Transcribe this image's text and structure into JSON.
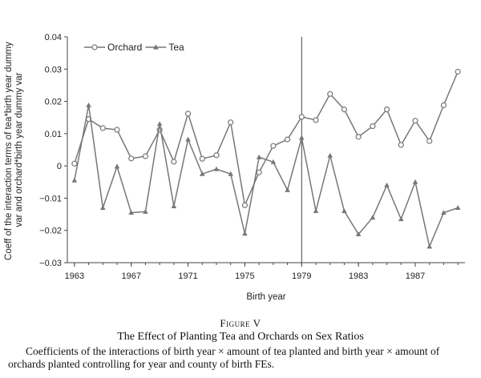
{
  "figure": {
    "label": "Figure V",
    "title": "The Effect of Planting Tea and Orchards on Sex Ratios",
    "note": "Coefficients of the interactions of birth year × amount of tea planted and birth year × amount of orchards planted controlling for year and county of birth FEs."
  },
  "chart_data": {
    "type": "line",
    "xlabel": "Birth year",
    "ylabel": "Coeff of the interaction terms of tea*birth year dummy var and orchard*birth year dummy var",
    "ylim": [
      -0.03,
      0.04
    ],
    "yticks": [
      -0.03,
      -0.02,
      -0.01,
      0,
      0.01,
      0.02,
      0.03,
      0.04
    ],
    "ytick_labels": [
      "−0.03",
      "−0.02",
      "−0.01",
      "0",
      "0.01",
      "0.02",
      "0.03",
      "0.04"
    ],
    "xlim": [
      1962.5,
      1990.5
    ],
    "xticks": [
      1963,
      1967,
      1971,
      1975,
      1979,
      1983,
      1987
    ],
    "xtick_labels": [
      "1963",
      "1967",
      "1971",
      "1975",
      "1979",
      "1983",
      "1987"
    ],
    "vline_x": 1979,
    "grid": false,
    "legend_position": "top-left",
    "x": [
      1963,
      1964,
      1965,
      1966,
      1967,
      1968,
      1969,
      1970,
      1971,
      1972,
      1973,
      1974,
      1975,
      1976,
      1977,
      1978,
      1979,
      1980,
      1981,
      1982,
      1983,
      1984,
      1985,
      1986,
      1987,
      1988,
      1989,
      1990
    ],
    "series": [
      {
        "name": "Orchard",
        "marker": "circle",
        "color": "#777777",
        "values": [
          0.0007,
          0.0145,
          0.0117,
          0.0112,
          0.0023,
          0.003,
          0.0112,
          0.0013,
          0.0162,
          0.0022,
          0.0033,
          0.0135,
          -0.0122,
          -0.002,
          0.0062,
          0.0082,
          0.0152,
          0.0142,
          0.0223,
          0.0175,
          0.009,
          0.0123,
          0.0175,
          0.0065,
          0.014,
          0.0077,
          0.0188,
          0.0292
        ]
      },
      {
        "name": "Tea",
        "marker": "triangle",
        "color": "#777777",
        "values": [
          -0.0045,
          0.0188,
          -0.013,
          -0.0002,
          -0.0145,
          -0.0142,
          0.013,
          -0.0125,
          0.0082,
          -0.0025,
          -0.001,
          -0.0025,
          -0.021,
          0.0027,
          0.0012,
          -0.0075,
          0.0087,
          -0.014,
          0.0032,
          -0.014,
          -0.0212,
          -0.016,
          -0.006,
          -0.0165,
          -0.005,
          -0.025,
          -0.0145,
          -0.013
        ]
      }
    ]
  }
}
